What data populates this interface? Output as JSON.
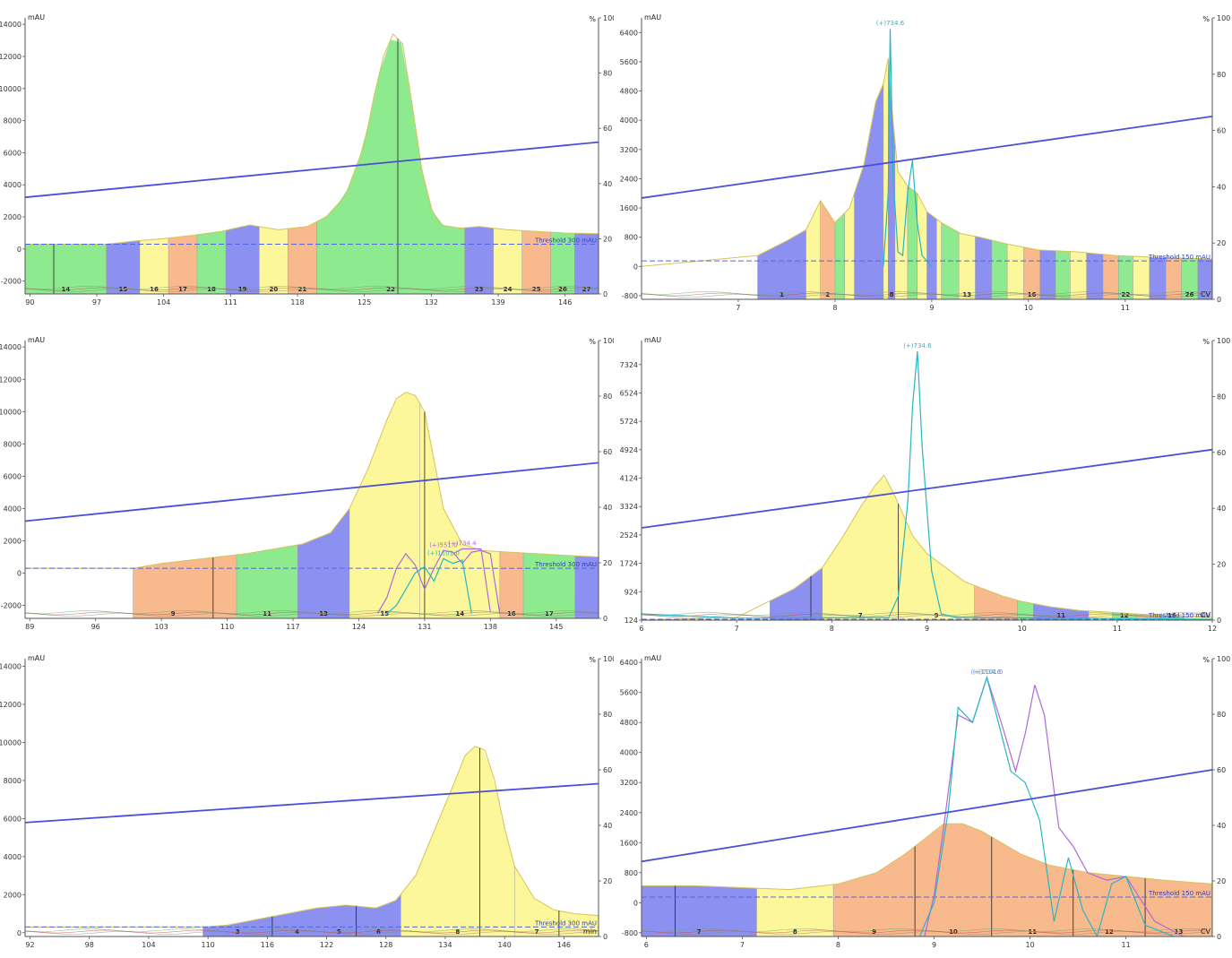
{
  "colors": {
    "background": "#ffffff",
    "signal": "#d4c45a",
    "gradient": "#4a4fdb",
    "threshold": "#5566dd",
    "frac_palette": [
      "#8c90f0",
      "#fbf79a",
      "#f8b98c",
      "#8eea8e"
    ]
  },
  "chart_data": [
    {
      "type": "area",
      "id": "panel-a",
      "y_unit": "mAU",
      "y2_unit": "%",
      "x_unit": "",
      "xlim": [
        89.5,
        149.5
      ],
      "ylim": [
        -2800,
        14400
      ],
      "x_ticks": [
        "90",
        "97",
        "104",
        "111",
        "118",
        "125",
        "132",
        "139",
        "146"
      ],
      "y_ticks": [
        "14000",
        "12000",
        "10000",
        "8000",
        "6000",
        "4000",
        "2000",
        "0",
        "-2000"
      ],
      "y2_ticks": [
        "100",
        "80",
        "60",
        "40",
        "20",
        "0"
      ],
      "threshold": {
        "label": "Threshold 300 mAU",
        "value": 300
      },
      "gradient": {
        "x_start": 89.5,
        "pct_start": 35,
        "x_end": 149.5,
        "pct_end": 55
      },
      "signal": {
        "x": [
          89.5,
          98,
          101,
          104,
          107,
          110,
          113,
          116,
          119,
          121,
          123,
          125,
          126,
          127,
          128,
          129,
          130,
          131,
          132,
          133,
          135,
          137,
          140,
          143,
          146,
          149.5
        ],
        "y": [
          300,
          300,
          500,
          650,
          850,
          1100,
          1500,
          1200,
          1400,
          2000,
          3300,
          6500,
          9500,
          12000,
          13400,
          12800,
          9000,
          5000,
          2500,
          1500,
          1300,
          1400,
          1200,
          1100,
          1000,
          950
        ]
      },
      "fractions": {
        "edges": [
          89.5,
          98,
          101.5,
          104.5,
          107.5,
          110.5,
          114,
          117,
          120,
          135.5,
          138.5,
          141.5,
          144.5,
          147,
          149.5
        ],
        "colors": [
          "#8eea8e",
          "#8c90f0",
          "#fbf79a",
          "#f8b98c",
          "#8eea8e",
          "#8c90f0",
          "#fbf79a",
          "#f8b98c",
          "#8eea8e",
          "#8c90f0",
          "#fbf79a",
          "#f8b98c",
          "#8eea8e",
          "#8c90f0"
        ],
        "labels": [
          "14",
          "15",
          "16",
          "17",
          "18",
          "19",
          "20",
          "21",
          "22",
          "23",
          "24",
          "25",
          "26",
          "27"
        ]
      },
      "markers": [
        92.5,
        128.5
      ]
    },
    {
      "type": "area",
      "id": "panel-b",
      "y_unit": "mAU",
      "y2_unit": "%",
      "x_unit": "CV",
      "xlim": [
        6,
        11.9
      ],
      "ylim": [
        -900,
        6800
      ],
      "x_ticks": [
        "7",
        "8",
        "9",
        "10",
        "11"
      ],
      "y_ticks": [
        "6400",
        "5600",
        "4800",
        "4000",
        "3200",
        "2400",
        "1600",
        "800",
        "0",
        "-800"
      ],
      "y2_ticks": [
        "100",
        "80",
        "60",
        "40",
        "20",
        "0"
      ],
      "threshold": {
        "label": "Threshold 150 mAU",
        "value": 150
      },
      "gradient": {
        "x_start": 6,
        "pct_start": 36,
        "x_end": 11.9,
        "pct_end": 65
      },
      "signal": {
        "x": [
          6,
          7.2,
          7.5,
          7.7,
          7.85,
          8.0,
          8.15,
          8.3,
          8.42,
          8.5,
          8.55,
          8.6,
          8.65,
          8.75,
          8.85,
          8.95,
          9.1,
          9.3,
          9.5,
          9.8,
          10.1,
          10.5,
          10.9,
          11.3,
          11.9
        ],
        "y": [
          0,
          300,
          700,
          1000,
          1800,
          1200,
          1600,
          2800,
          4500,
          5000,
          5700,
          4000,
          2600,
          2200,
          2000,
          1500,
          1200,
          900,
          800,
          600,
          450,
          400,
          300,
          250,
          200
        ]
      },
      "fractions": {
        "edges": [
          7.2,
          7.7,
          7.85,
          8.0,
          8.1,
          8.2,
          8.5,
          8.55,
          8.62,
          8.75,
          8.85,
          8.95,
          9.05,
          9.1,
          9.28,
          9.45,
          9.62,
          9.78,
          9.95,
          10.12,
          10.28,
          10.43,
          10.6,
          10.77,
          10.93,
          11.08,
          11.25,
          11.42,
          11.58,
          11.75,
          11.9
        ],
        "colors": [
          "#8c90f0",
          "#fbf79a",
          "#f8b98c",
          "#8eea8e",
          "#fbf79a",
          "#8c90f0",
          "#fbf79a",
          "#8c90f0",
          "#fbf79a",
          "#8eea8e",
          "#fbf79a",
          "#8c90f0",
          "#fbf79a",
          "#8eea8e",
          "#fbf79a",
          "#8c90f0",
          "#8eea8e",
          "#fbf79a",
          "#f8b98c",
          "#8c90f0",
          "#8eea8e",
          "#fbf79a",
          "#8c90f0",
          "#f8b98c",
          "#8eea8e",
          "#fbf79a",
          "#8c90f0",
          "#f8b98c",
          "#8eea8e",
          "#8c90f0"
        ],
        "labels": [
          "1",
          "",
          "2",
          "",
          "",
          "",
          "",
          "8",
          "",
          "",
          "",
          "",
          "",
          "",
          "13",
          "",
          "",
          "",
          "16",
          "",
          "",
          "",
          "",
          "",
          "22",
          "",
          "",
          "",
          "26",
          ""
        ]
      },
      "ms_traces": [
        {
          "name": "(+)734.6",
          "color": "#27b7c4",
          "x": [
            8.5,
            8.55,
            8.57,
            8.6,
            8.65,
            8.7,
            8.75,
            8.8,
            8.85,
            8.9,
            9.0
          ],
          "y": [
            0,
            2000,
            6500,
            2500,
            400,
            300,
            2000,
            2900,
            1200,
            300,
            0
          ]
        }
      ],
      "markers": []
    },
    {
      "type": "area",
      "id": "panel-c",
      "y_unit": "mAU",
      "y2_unit": "%",
      "x_unit": "",
      "xlim": [
        88.5,
        149.5
      ],
      "ylim": [
        -2800,
        14400
      ],
      "x_ticks": [
        "89",
        "96",
        "103",
        "110",
        "117",
        "124",
        "131",
        "138",
        "145"
      ],
      "y_ticks": [
        "14000",
        "12000",
        "10000",
        "8000",
        "6000",
        "4000",
        "2000",
        "0",
        "-2000"
      ],
      "y2_ticks": [
        "100",
        "80",
        "60",
        "40",
        "20",
        "0"
      ],
      "threshold": {
        "label": "Threshold 300 mAU",
        "value": 300
      },
      "gradient": {
        "x_start": 88.5,
        "pct_start": 35,
        "x_end": 149.5,
        "pct_end": 56
      },
      "signal": {
        "x": [
          88.5,
          100,
          103,
          106,
          109,
          112,
          115,
          118,
          121,
          123,
          125,
          127,
          128,
          129,
          130,
          131,
          132,
          133,
          135,
          137,
          140,
          143,
          146,
          149.5
        ],
        "y": [
          300,
          300,
          600,
          800,
          1000,
          1200,
          1500,
          1800,
          2500,
          4000,
          6500,
          9500,
          10800,
          11200,
          11000,
          10000,
          7000,
          4000,
          1800,
          1400,
          1300,
          1200,
          1100,
          1000
        ]
      },
      "fractions": {
        "edges": [
          100,
          108.5,
          111,
          117.5,
          123,
          130.5,
          139,
          141.5,
          147,
          149.5
        ],
        "colors": [
          "#f8b98c",
          "#f8b98c",
          "#8eea8e",
          "#8c90f0",
          "#fbf79a",
          "#fbf79a",
          "#f8b98c",
          "#8eea8e",
          "#8c90f0"
        ],
        "labels": [
          "9",
          "",
          "11",
          "13",
          "15",
          "14",
          "16",
          "17",
          ""
        ]
      },
      "ms_traces": [
        {
          "name": "(+)551.0",
          "color": "#b06ad8",
          "x": [
            126,
            127,
            128,
            129,
            130,
            131,
            132,
            133,
            134,
            135,
            136,
            137,
            138,
            139
          ],
          "y": [
            -2500,
            -1500,
            300,
            1200,
            500,
            -1000,
            300,
            1400,
            1300,
            600,
            1300,
            1400,
            1200,
            -2500
          ]
        },
        {
          "name": "(+)1101.0",
          "color": "#27b7c4",
          "x": [
            127,
            128,
            129,
            130,
            131,
            132,
            133,
            134,
            135,
            136
          ],
          "y": [
            -2500,
            -2000,
            -1000,
            0,
            400,
            -500,
            900,
            600,
            800,
            -2500
          ]
        },
        {
          "name": "(+)734.4",
          "color": "#b06ad8",
          "x": [
            134,
            135,
            136,
            137,
            138
          ],
          "y": [
            1200,
            1500,
            1500,
            1500,
            -2400
          ]
        }
      ],
      "markers": [
        108.5,
        131
      ]
    },
    {
      "type": "area",
      "id": "panel-d",
      "y_unit": "mAU",
      "y2_unit": "%",
      "x_unit": "CV",
      "xlim": [
        6,
        12
      ],
      "ylim": [
        124,
        8000
      ],
      "x_ticks": [
        "6",
        "7",
        "8",
        "9",
        "10",
        "11",
        "12"
      ],
      "y_ticks": [
        "7324",
        "6524",
        "5724",
        "4924",
        "4124",
        "3324",
        "2524",
        "1724",
        "924",
        "124"
      ],
      "y2_ticks": [
        "100",
        "80",
        "60",
        "40",
        "20",
        "0"
      ],
      "threshold": {
        "label": "Threshold 150 mAU",
        "value": 150
      },
      "gradient": {
        "x_start": 6,
        "pct_start": 33,
        "x_end": 12,
        "pct_end": 61
      },
      "signal": {
        "x": [
          6,
          7,
          7.3,
          7.6,
          7.9,
          8.1,
          8.3,
          8.45,
          8.55,
          8.65,
          8.75,
          8.85,
          9.0,
          9.2,
          9.4,
          9.6,
          9.8,
          10.0,
          10.3,
          10.6,
          10.9,
          11.2,
          11.5,
          12
        ],
        "y": [
          124,
          200,
          600,
          1000,
          1600,
          2400,
          3300,
          3900,
          4200,
          3700,
          3100,
          2500,
          2000,
          1600,
          1200,
          1000,
          800,
          650,
          500,
          400,
          350,
          300,
          250,
          200
        ]
      },
      "fractions": {
        "edges": [
          7.35,
          7.78,
          7.9,
          8.7,
          9.5,
          9.95,
          10.12,
          10.7,
          10.95,
          11.2,
          11.45,
          11.7,
          12.0
        ],
        "colors": [
          "#8c90f0",
          "#8c90f0",
          "#fbf79a",
          "#fbf79a",
          "#f8b98c",
          "#8eea8e",
          "#8c90f0",
          "#fbf79a",
          "#8eea8e",
          "#f8b98c",
          "#8eea8e",
          "#fbf79a"
        ],
        "labels": [
          "",
          "",
          "7",
          "9",
          "",
          "",
          "11",
          "",
          "12",
          "",
          "16",
          ""
        ]
      },
      "ms_traces": [
        {
          "name": "(+)734.6",
          "color": "#27b7c4",
          "x": [
            6,
            7,
            8.6,
            8.7,
            8.8,
            8.85,
            8.9,
            8.95,
            9.05,
            9.15,
            9.3,
            12
          ],
          "y": [
            300,
            180,
            200,
            800,
            3500,
            6200,
            7700,
            5000,
            1500,
            300,
            200,
            150
          ]
        }
      ],
      "markers": [
        7.78,
        8.7
      ]
    },
    {
      "type": "area",
      "id": "panel-e",
      "y_unit": "mAU",
      "y2_unit": "%",
      "x_unit": "min",
      "xlim": [
        91.5,
        149.5
      ],
      "ylim": [
        -200,
        14400
      ],
      "x_ticks": [
        "92",
        "98",
        "104",
        "110",
        "116",
        "122",
        "128",
        "134",
        "140",
        "146"
      ],
      "y_ticks": [
        "14000",
        "12000",
        "10000",
        "8000",
        "6000",
        "4000",
        "2000",
        "0"
      ],
      "y2_ticks": [
        "100",
        "80",
        "60",
        "40",
        "20",
        "0"
      ],
      "threshold": {
        "label": "Threshold 300 mAU",
        "value": 300
      },
      "gradient": {
        "x_start": 91.5,
        "pct_start": 41,
        "x_end": 149.5,
        "pct_end": 55
      },
      "signal": {
        "x": [
          91.5,
          109.5,
          112,
          115,
          118,
          121,
          124,
          127,
          129,
          131,
          133,
          135,
          136,
          137,
          138,
          139,
          140,
          141,
          143,
          145,
          147,
          149.5
        ],
        "y": [
          300,
          300,
          400,
          700,
          1000,
          1300,
          1450,
          1300,
          1700,
          3000,
          5500,
          8000,
          9300,
          9800,
          9600,
          8000,
          5500,
          3500,
          1800,
          1200,
          1000,
          900
        ]
      },
      "fractions": {
        "edges": [
          109.5,
          116.5,
          121.5,
          125,
          129.5,
          141,
          145.5,
          149.5
        ],
        "colors": [
          "#8c90f0",
          "#8c90f0",
          "#8c90f0",
          "#8c90f0",
          "#fbf79a",
          "#fbf79a",
          "#fbf79a"
        ],
        "labels": [
          "3",
          "4",
          "5",
          "6",
          "8",
          "7",
          ""
        ]
      },
      "markers": [
        116.5,
        125,
        137.5,
        145.5
      ]
    },
    {
      "type": "area",
      "id": "panel-f",
      "y_unit": "mAU",
      "y2_unit": "%",
      "x_unit": "CV",
      "xlim": [
        5.95,
        11.9
      ],
      "ylim": [
        -900,
        6500
      ],
      "x_ticks": [
        "6",
        "7",
        "8",
        "9",
        "10",
        "11"
      ],
      "y_ticks": [
        "6400",
        "5600",
        "4800",
        "4000",
        "3200",
        "2400",
        "1600",
        "800",
        "0",
        "-800"
      ],
      "y2_ticks": [
        "100",
        "80",
        "60",
        "40",
        "20",
        "0"
      ],
      "threshold": {
        "label": "Threshold 150 mAU",
        "value": 150
      },
      "gradient": {
        "x_start": 5.95,
        "pct_start": 27,
        "x_end": 11.9,
        "pct_end": 60
      },
      "signal": {
        "x": [
          5.95,
          6.5,
          7.0,
          7.5,
          8.0,
          8.4,
          8.7,
          8.95,
          9.1,
          9.3,
          9.5,
          9.7,
          9.9,
          10.2,
          10.6,
          11.0,
          11.4,
          11.9
        ],
        "y": [
          450,
          450,
          400,
          350,
          500,
          800,
          1300,
          1800,
          2100,
          2100,
          1900,
          1600,
          1300,
          1000,
          800,
          700,
          600,
          500
        ]
      },
      "fractions": {
        "edges": [
          5.95,
          7.15,
          7.95,
          8.8,
          9.6,
          10.45,
          11.2,
          11.9
        ],
        "colors": [
          "#8c90f0",
          "#fbf79a",
          "#f8b98c",
          "#f8b98c",
          "#f8b98c",
          "#f8b98c",
          "#f8b98c"
        ],
        "labels": [
          "7",
          "8",
          "9",
          "10",
          "11",
          "12",
          "13"
        ]
      },
      "ms_traces": [
        {
          "name": "(+)1101.0",
          "color": "#b06ad8",
          "x": [
            8.9,
            9.0,
            9.1,
            9.25,
            9.4,
            9.55,
            9.7,
            9.85,
            9.95,
            10.05,
            10.15,
            10.3,
            10.45,
            10.6,
            10.8,
            11.0,
            11.3,
            11.6
          ],
          "y": [
            -900,
            200,
            2000,
            5000,
            4800,
            6000,
            4800,
            3500,
            4500,
            5800,
            5000,
            2000,
            1500,
            800,
            600,
            700,
            -500,
            -900
          ]
        },
        {
          "name": "(+)734.6",
          "color": "#27b7c4",
          "x": [
            8.85,
            9.0,
            9.15,
            9.25,
            9.4,
            9.55,
            9.65,
            9.8,
            9.95,
            10.1,
            10.25,
            10.4,
            10.55,
            10.7,
            10.85,
            11.0,
            11.2,
            11.5
          ],
          "y": [
            -900,
            0,
            2500,
            5200,
            4800,
            6000,
            5000,
            3500,
            3200,
            2200,
            -500,
            1200,
            -200,
            -900,
            500,
            700,
            -600,
            -900
          ]
        }
      ],
      "markers": [
        6.3,
        8.8,
        9.6,
        10.45,
        11.2
      ]
    }
  ]
}
